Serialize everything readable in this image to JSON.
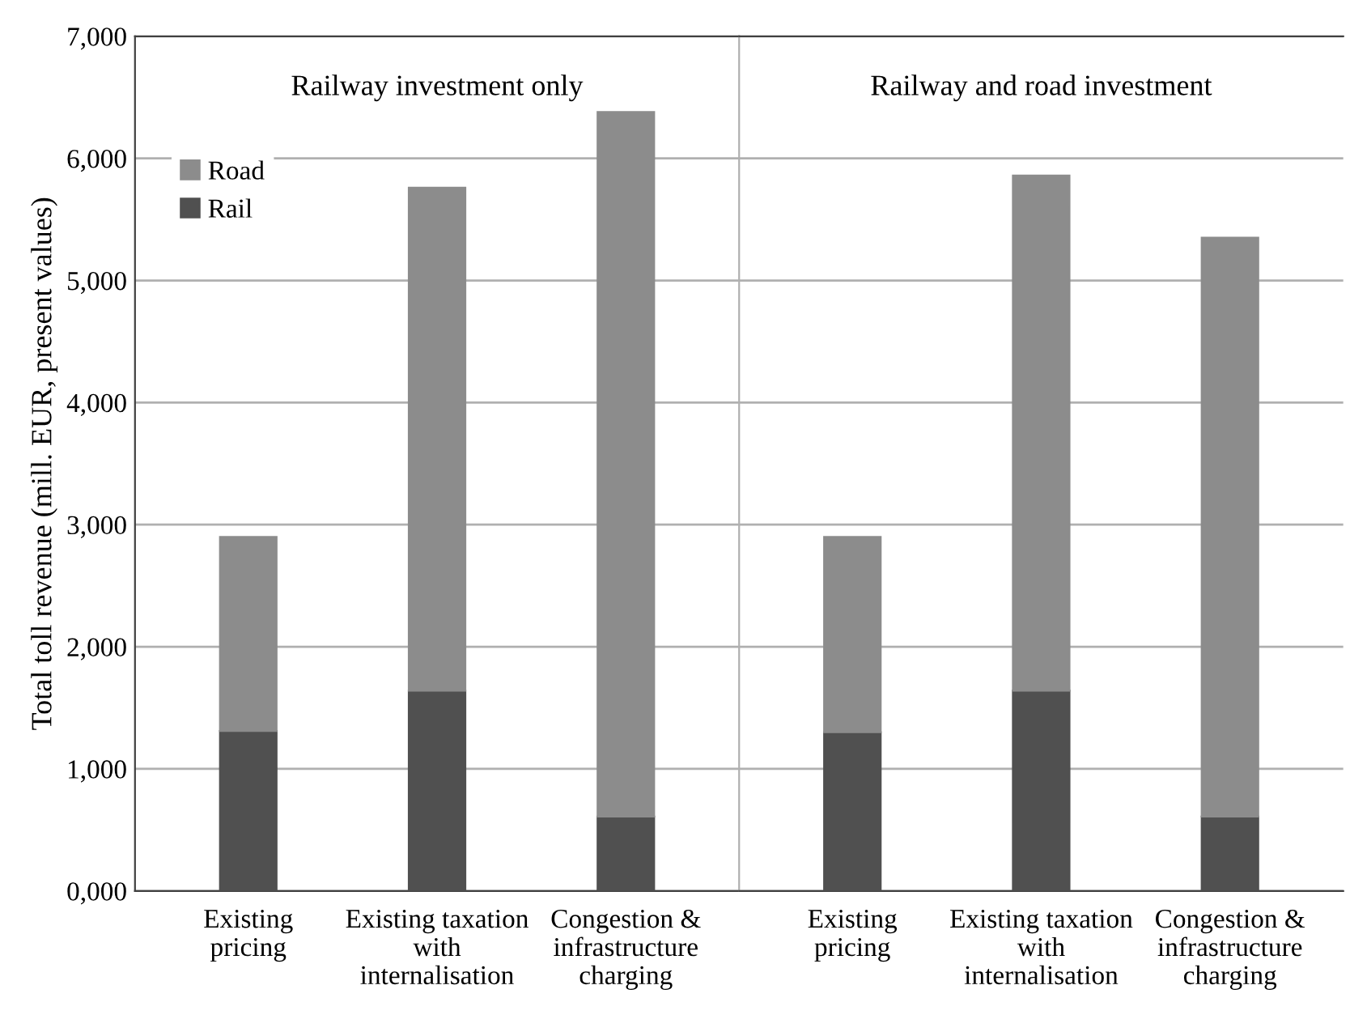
{
  "chart_data": [
    {
      "type": "bar",
      "stacked": true,
      "ylabel": "Total toll revenue (mill. EUR, present values)",
      "annotations": [
        "Railway investment only"
      ],
      "categories": [
        "Existing\npricing",
        "Existing taxation\nwith\ninternalisation",
        "Congestion &\ninfrastructure\ncharging"
      ],
      "series": [
        {
          "name": "Rail",
          "color": "#505050",
          "values": [
            1310,
            1640,
            610
          ]
        },
        {
          "name": "Road",
          "color": "#8c8c8c",
          "values": [
            1590,
            4120,
            5770
          ]
        }
      ],
      "ylim": [
        0,
        7000
      ],
      "yticks": [
        {
          "value": 0,
          "label": "0,000"
        },
        {
          "value": 1000,
          "label": "1,000"
        },
        {
          "value": 2000,
          "label": "2,000"
        },
        {
          "value": 3000,
          "label": "3,000"
        },
        {
          "value": 4000,
          "label": "4,000"
        },
        {
          "value": 5000,
          "label": "5,000"
        },
        {
          "value": 6000,
          "label": "6,000"
        },
        {
          "value": 7000,
          "label": "7,000"
        }
      ],
      "grid": "y",
      "legend": "top left"
    },
    {
      "type": "bar",
      "stacked": true,
      "annotations": [
        "Railway and road investment"
      ],
      "categories": [
        "Existing\npricing",
        "Existing taxation\nwith\ninternalisation",
        "Congestion &\ninfrastructure\ncharging"
      ],
      "series": [
        {
          "color": "#505050",
          "values": [
            1300,
            1640,
            610
          ]
        },
        {
          "color": "#8c8c8c",
          "values": [
            1600,
            4220,
            4740
          ]
        }
      ],
      "ylim": [
        0,
        7000
      ],
      "grid": "y",
      "tick_labels": "x"
    }
  ]
}
